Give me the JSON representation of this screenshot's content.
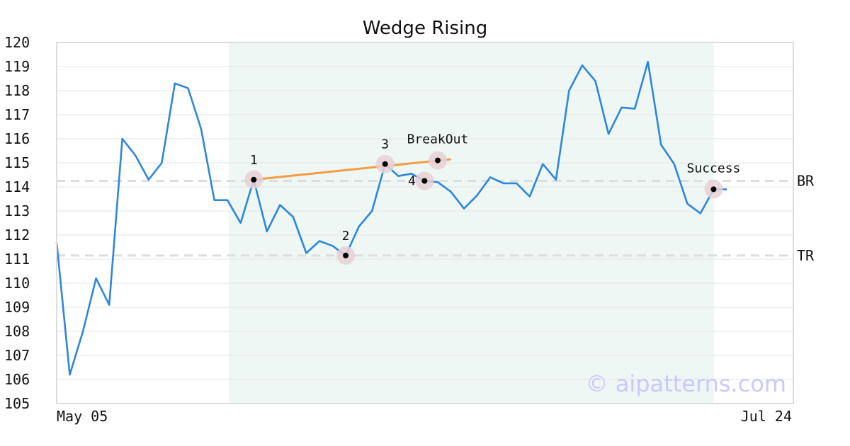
{
  "chart_data": {
    "type": "line",
    "title": "Wedge Rising",
    "xlabel": "",
    "ylabel": "",
    "ylim": [
      105,
      120
    ],
    "yticks": [
      105,
      106,
      107,
      108,
      109,
      110,
      111,
      112,
      113,
      114,
      115,
      116,
      117,
      118,
      119,
      120
    ],
    "x_tick_labels": [
      "May 05",
      "Jul 24"
    ],
    "series": [
      {
        "values": [
          111.7,
          106.2,
          108.0,
          110.2,
          109.1,
          116.0,
          115.3,
          114.3,
          115.0,
          118.3,
          118.1,
          116.4,
          113.45,
          113.45,
          112.5,
          114.3,
          112.15,
          113.25,
          112.75,
          111.25,
          111.75,
          111.55,
          111.15,
          112.35,
          113.0,
          114.95,
          114.45,
          114.55,
          114.25,
          114.2,
          113.8,
          113.1,
          113.65,
          114.4,
          114.15,
          114.15,
          113.6,
          114.95,
          114.3,
          118.0,
          119.05,
          118.4,
          116.2,
          117.3,
          117.25,
          119.2,
          115.75,
          114.95,
          113.3,
          112.9,
          113.9,
          113.9
        ],
        "color": "#2e86de"
      }
    ],
    "shaded_region": {
      "from_index": 13,
      "to_index": 50,
      "color": "#eef7f3"
    },
    "reference_lines": [
      {
        "label": "BR",
        "y": 114.25
      },
      {
        "label": "TR",
        "y": 111.15
      }
    ],
    "pattern_points": [
      {
        "label": "1",
        "index": 15,
        "y": 114.3
      },
      {
        "label": "2",
        "index": 22,
        "y": 111.15
      },
      {
        "label": "3",
        "index": 25,
        "y": 114.95
      },
      {
        "label": "4",
        "index": 28,
        "y": 114.25
      },
      {
        "label": "",
        "index": 29,
        "y": 115.1
      },
      {
        "label": "",
        "index": 50,
        "y": 113.9
      }
    ],
    "wedge_line": {
      "from": {
        "index": 15,
        "y": 114.3
      },
      "to": {
        "index": 30,
        "y": 115.15
      },
      "color": "#f39c44"
    },
    "annotations": [
      {
        "text": "BreakOut",
        "index": 29,
        "y": 115.1
      },
      {
        "text": "Success",
        "index": 50,
        "y": 113.9
      }
    ],
    "watermark": "© aipatterns.com",
    "grid": true,
    "colors": {
      "line": "#2e86de",
      "wedge": "#f39c44",
      "marker_ring": "#e8d0d6",
      "reference": "#dddddd"
    }
  }
}
